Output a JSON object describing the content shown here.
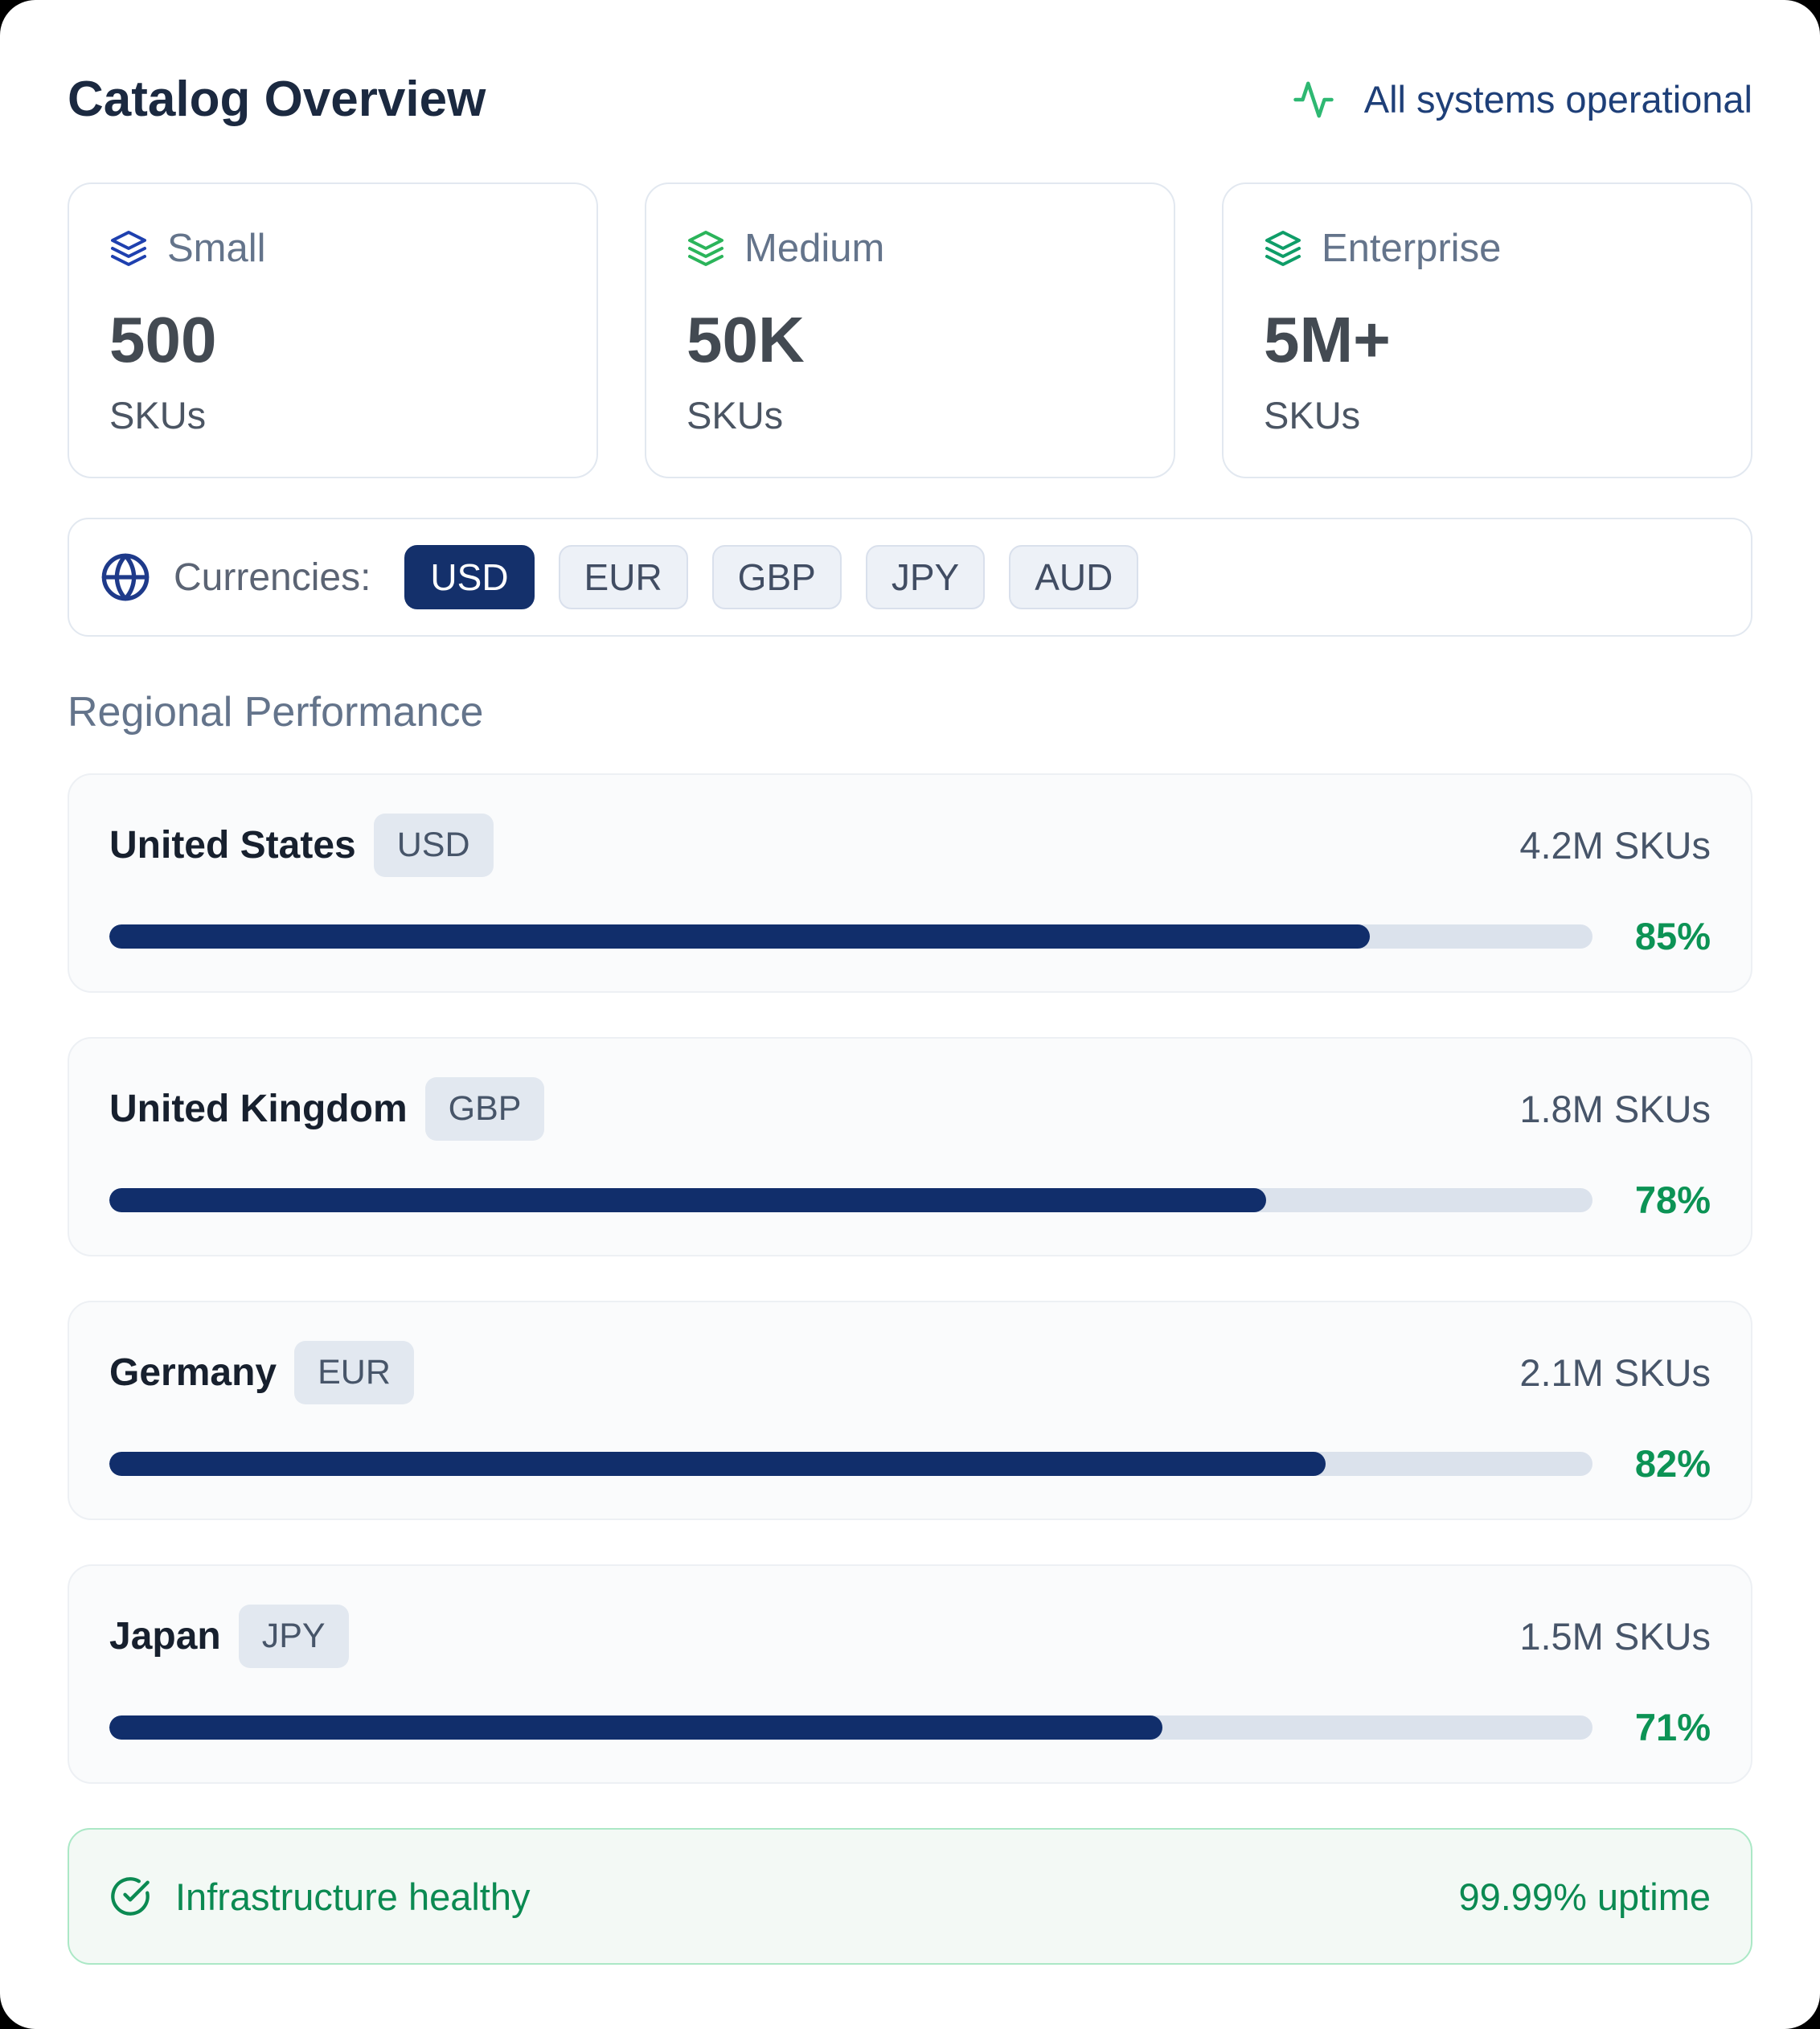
{
  "header": {
    "title": "Catalog Overview",
    "status": "All systems operational"
  },
  "tiers": [
    {
      "label": "Small",
      "value": "500",
      "unit": "SKUs",
      "icon": "layers-icon",
      "icon_color": "#1e40af"
    },
    {
      "label": "Medium",
      "value": "50K",
      "unit": "SKUs",
      "icon": "layers-icon",
      "icon_color": "#2bb45a"
    },
    {
      "label": "Enterprise",
      "value": "5M+",
      "unit": "SKUs",
      "icon": "layers-icon",
      "icon_color": "#0f9d68"
    }
  ],
  "currencies": {
    "label": "Currencies:",
    "options": [
      "USD",
      "EUR",
      "GBP",
      "JPY",
      "AUD"
    ],
    "selected": "USD"
  },
  "regional": {
    "heading": "Regional Performance",
    "regions": [
      {
        "name": "United States",
        "currency": "USD",
        "skus": "4.2M SKUs",
        "percent": 85
      },
      {
        "name": "United Kingdom",
        "currency": "GBP",
        "skus": "1.8M SKUs",
        "percent": 78
      },
      {
        "name": "Germany",
        "currency": "EUR",
        "skus": "2.1M SKUs",
        "percent": 82
      },
      {
        "name": "Japan",
        "currency": "JPY",
        "skus": "1.5M SKUs",
        "percent": 71
      }
    ]
  },
  "footer": {
    "message": "Infrastructure healthy",
    "uptime": "99.99% uptime"
  },
  "colors": {
    "accent_navy": "#14306b",
    "bar_fill": "#112e6b",
    "percent_green": "#0c9355",
    "status_green": "#2eb872",
    "banner_green": "#0b8a52",
    "banner_border": "#abe8c6"
  }
}
